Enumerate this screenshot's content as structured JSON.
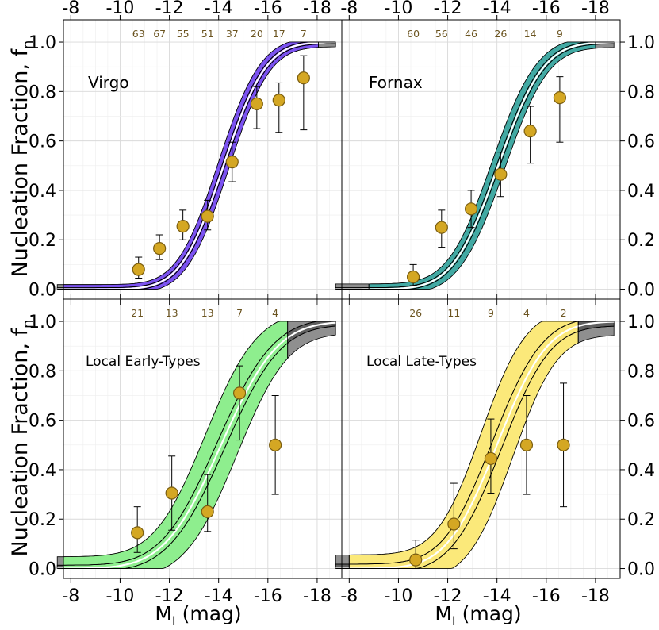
{
  "chart_data": {
    "type": "line",
    "layout": "2x2 grid of panels, shared axes",
    "xlabel": "M_I (mag)",
    "xlabel_main": "M",
    "xlabel_sub": "I",
    "xlabel_unit": " (mag)",
    "ylabel": "Nucleation Fraction, f_n",
    "ylabel_main": "Nucleation Fraction, f",
    "ylabel_sub": "n",
    "xlim": [
      -7.7,
      -19.0
    ],
    "ylim": [
      -0.04,
      1.09
    ],
    "xticks": [
      -8,
      -10,
      -12,
      -14,
      -16,
      -18
    ],
    "xtick_labels": [
      "-8",
      "-10",
      "-12",
      "-14",
      "-16",
      "-18"
    ],
    "yticks": [
      0.0,
      0.2,
      0.4,
      0.6,
      0.8,
      1.0
    ],
    "ytick_labels": [
      "0.0",
      "0.2",
      "0.4",
      "0.6",
      "0.8",
      "1.0"
    ],
    "grid": true,
    "panels": [
      {
        "name": "Virgo",
        "color": "#7b52f0",
        "model": {
          "m50": -14.2,
          "sigma": 1.35,
          "band": 0.075,
          "inner": 0.02,
          "range": [
            -7.7,
            -18.05
          ]
        },
        "points": [
          {
            "x": -10.75,
            "y": 0.08,
            "err_lo": 0.035,
            "err_hi": 0.05,
            "n": "63"
          },
          {
            "x": -11.6,
            "y": 0.165,
            "err_lo": 0.045,
            "err_hi": 0.055,
            "n": "67"
          },
          {
            "x": -12.55,
            "y": 0.255,
            "err_lo": 0.055,
            "err_hi": 0.065,
            "n": "55"
          },
          {
            "x": -13.55,
            "y": 0.295,
            "err_lo": 0.055,
            "err_hi": 0.065,
            "n": "51"
          },
          {
            "x": -14.55,
            "y": 0.515,
            "err_lo": 0.08,
            "err_hi": 0.08,
            "n": "37"
          },
          {
            "x": -15.55,
            "y": 0.75,
            "err_lo": 0.1,
            "err_hi": 0.07,
            "n": "20"
          },
          {
            "x": -16.45,
            "y": 0.765,
            "err_lo": 0.13,
            "err_hi": 0.07,
            "n": "17"
          },
          {
            "x": -17.45,
            "y": 0.855,
            "err_lo": 0.21,
            "err_hi": 0.09,
            "n": "7"
          }
        ]
      },
      {
        "name": "Fornax",
        "color": "#42a9a3",
        "model": {
          "m50": -14.05,
          "sigma": 1.45,
          "band": 0.085,
          "inner": 0.02,
          "range": [
            -8.8,
            -18.0
          ]
        },
        "points": [
          {
            "x": -10.6,
            "y": 0.05,
            "err_lo": 0.035,
            "err_hi": 0.05,
            "n": "60"
          },
          {
            "x": -11.75,
            "y": 0.25,
            "err_lo": 0.08,
            "err_hi": 0.07,
            "n": "56"
          },
          {
            "x": -12.95,
            "y": 0.325,
            "err_lo": 0.075,
            "err_hi": 0.075,
            "n": "46"
          },
          {
            "x": -14.15,
            "y": 0.465,
            "err_lo": 0.09,
            "err_hi": 0.09,
            "n": "26"
          },
          {
            "x": -15.35,
            "y": 0.64,
            "err_lo": 0.13,
            "err_hi": 0.1,
            "n": "14"
          },
          {
            "x": -16.55,
            "y": 0.775,
            "err_lo": 0.18,
            "err_hi": 0.085,
            "n": "9"
          }
        ]
      },
      {
        "name": "Local Early-Types",
        "color": "#8eee8e",
        "model": {
          "m50": -14.1,
          "sigma": 1.8,
          "band": 0.19,
          "inner": 0.045,
          "range": [
            -7.7,
            -16.8
          ]
        },
        "points": [
          {
            "x": -10.7,
            "y": 0.145,
            "err_lo": 0.08,
            "err_hi": 0.105,
            "n": "21"
          },
          {
            "x": -12.1,
            "y": 0.305,
            "err_lo": 0.15,
            "err_hi": 0.15,
            "n": "13"
          },
          {
            "x": -13.55,
            "y": 0.23,
            "err_lo": 0.08,
            "err_hi": 0.15,
            "n": "13"
          },
          {
            "x": -14.85,
            "y": 0.71,
            "err_lo": 0.19,
            "err_hi": 0.11,
            "n": "7"
          },
          {
            "x": -16.3,
            "y": 0.5,
            "err_lo": 0.2,
            "err_hi": 0.2,
            "n": "4"
          }
        ]
      },
      {
        "name": "Local Late-Types",
        "color": "#fbe97a",
        "model": {
          "m50": -14.0,
          "sigma": 1.6,
          "band": 0.22,
          "inner": 0.06,
          "range": [
            -8.0,
            -17.3
          ]
        },
        "points": [
          {
            "x": -10.7,
            "y": 0.035,
            "err_lo": 0.035,
            "err_hi": 0.08,
            "n": "26"
          },
          {
            "x": -12.25,
            "y": 0.18,
            "err_lo": 0.1,
            "err_hi": 0.165,
            "n": "11"
          },
          {
            "x": -13.75,
            "y": 0.445,
            "err_lo": 0.14,
            "err_hi": 0.16,
            "n": "9"
          },
          {
            "x": -15.2,
            "y": 0.5,
            "err_lo": 0.2,
            "err_hi": 0.2,
            "n": "4"
          },
          {
            "x": -16.7,
            "y": 0.5,
            "err_lo": 0.25,
            "err_hi": 0.25,
            "n": "2"
          }
        ]
      }
    ]
  }
}
